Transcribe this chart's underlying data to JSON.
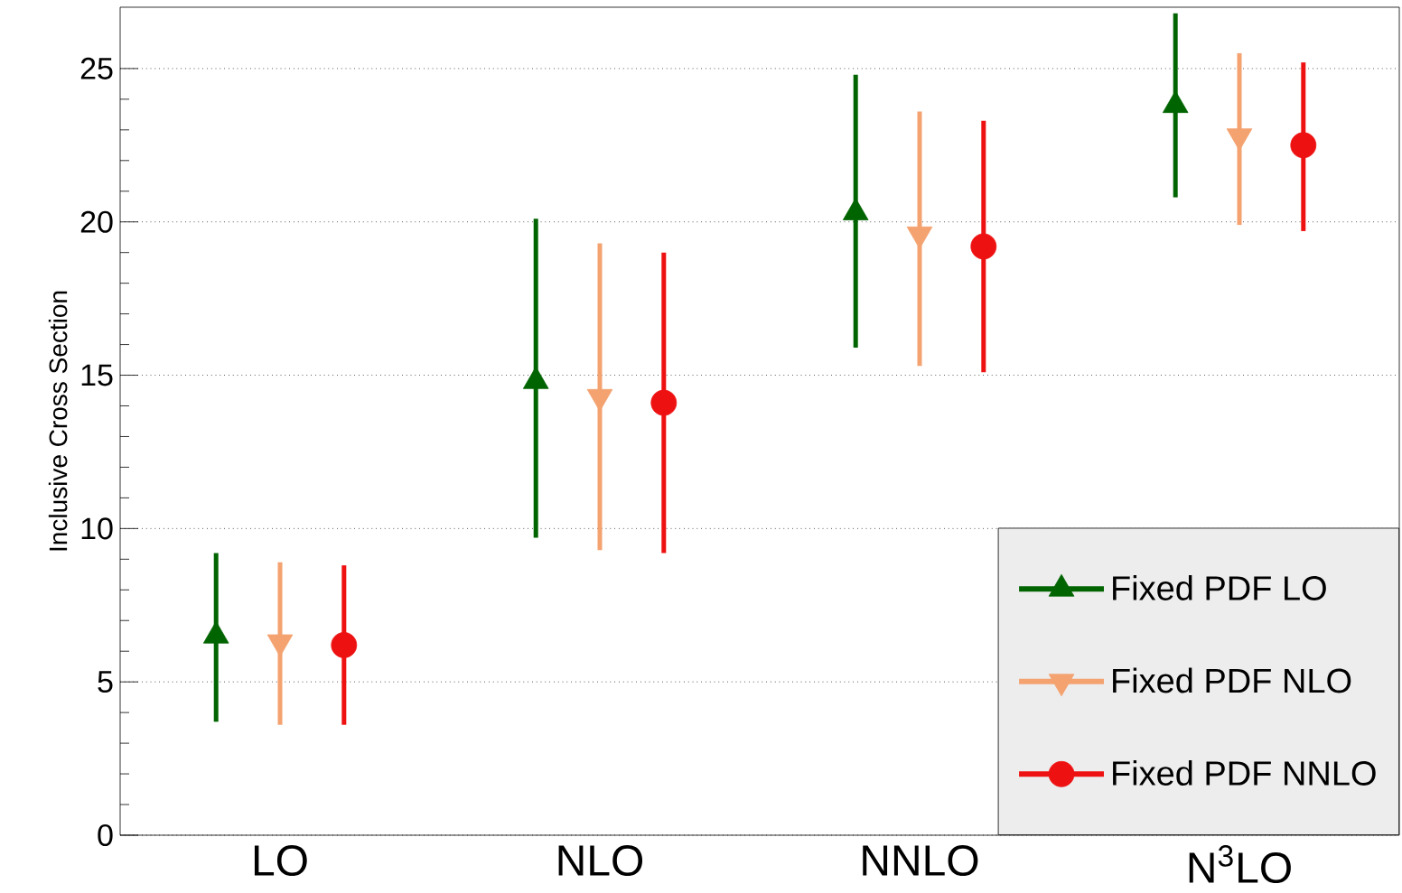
{
  "chart_data": {
    "type": "scatter",
    "ylabel": "Inclusive Cross Section",
    "categories": [
      "LO",
      "NLO",
      "NNLO",
      "N$^{3}$LO"
    ],
    "series": [
      {
        "name": "Fixed PDF LO",
        "color": "#006400",
        "marker": "triangle",
        "values": [
          6.5,
          14.8,
          20.3,
          23.8
        ],
        "errors": [
          [
            3.7,
            9.2
          ],
          [
            9.7,
            20.1
          ],
          [
            15.9,
            24.8
          ],
          [
            20.8,
            26.8
          ]
        ]
      },
      {
        "name": "Fixed PDF NLO",
        "color": "#f4a270",
        "marker": "triangle-down",
        "values": [
          6.3,
          14.3,
          19.6,
          22.8
        ],
        "errors": [
          [
            3.6,
            8.9
          ],
          [
            9.3,
            19.3
          ],
          [
            15.3,
            23.6
          ],
          [
            19.9,
            25.5
          ]
        ]
      },
      {
        "name": "Fixed PDF NNLO",
        "color": "#ee1111",
        "marker": "circle",
        "values": [
          6.2,
          14.1,
          19.2,
          22.5
        ],
        "errors": [
          [
            3.6,
            8.8
          ],
          [
            9.2,
            19.0
          ],
          [
            15.1,
            23.3
          ],
          [
            19.7,
            25.2
          ]
        ]
      }
    ],
    "ylim": [
      0,
      27
    ],
    "yticks": [
      0,
      5,
      10,
      15,
      20,
      25
    ],
    "grid": "y",
    "legend": "bottom right"
  }
}
